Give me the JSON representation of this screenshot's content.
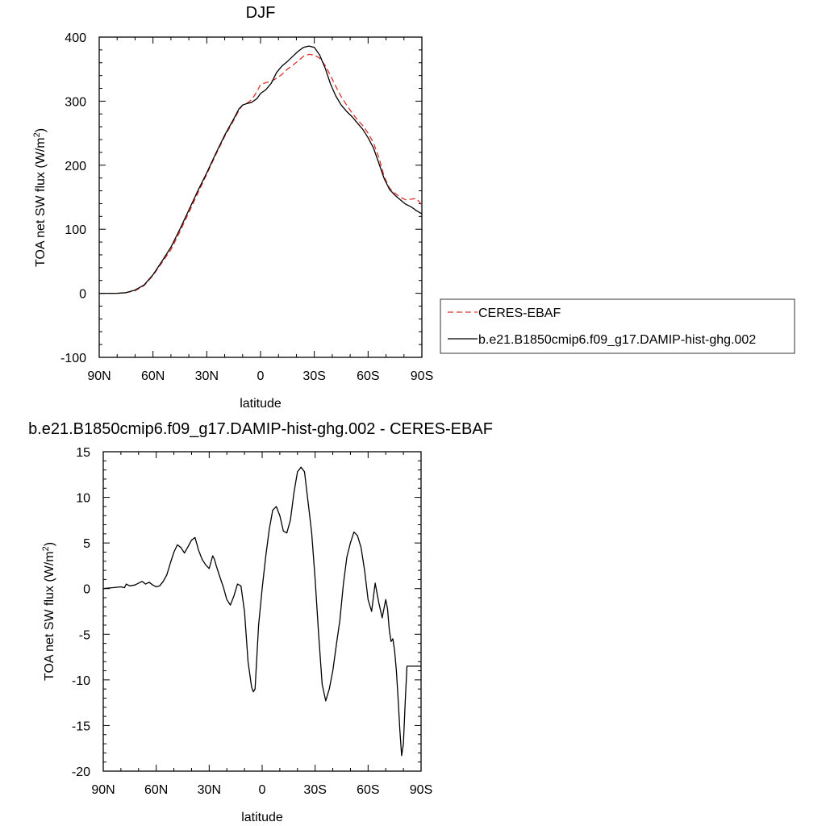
{
  "chart_data": [
    {
      "type": "line",
      "title": "DJF",
      "xlabel": "latitude",
      "ylabel": "TOA net SW flux (W/m",
      "ylabel_sup": "2",
      "ylabel_end": ")",
      "xlim": [
        90,
        -90
      ],
      "ylim": [
        -100,
        400
      ],
      "xticks": [
        {
          "value": 90,
          "label": "90N"
        },
        {
          "value": 60,
          "label": "60N"
        },
        {
          "value": 30,
          "label": "30N"
        },
        {
          "value": 0,
          "label": "0"
        },
        {
          "value": -30,
          "label": "30S"
        },
        {
          "value": -60,
          "label": "60S"
        },
        {
          "value": -90,
          "label": "90S"
        }
      ],
      "yticks": [
        {
          "value": -100,
          "label": "-100"
        },
        {
          "value": 0,
          "label": "0"
        },
        {
          "value": 100,
          "label": "100"
        },
        {
          "value": 200,
          "label": "200"
        },
        {
          "value": 300,
          "label": "300"
        },
        {
          "value": 400,
          "label": "400"
        }
      ],
      "legend_placement": "outside-right-bottom",
      "series": [
        {
          "name": "CERES-EBAF",
          "color": "#e0302a",
          "dash": "dashed",
          "x": [
            90,
            85,
            80,
            75,
            70,
            65,
            60,
            55,
            50,
            45,
            40,
            35,
            30,
            25,
            20,
            15,
            12,
            10,
            8,
            5,
            2,
            0,
            -3,
            -6,
            -9,
            -12,
            -15,
            -18,
            -21,
            -24,
            -27,
            -30,
            -33,
            -36,
            -39,
            -42,
            -45,
            -48,
            -51,
            -54,
            -57,
            -60,
            -63,
            -66,
            -69,
            -72,
            -75,
            -78,
            -81,
            -84,
            -87,
            -90
          ],
          "y": [
            0,
            0,
            0,
            1,
            4,
            12,
            28,
            48,
            68,
            96,
            126,
            156,
            186,
            216,
            245,
            270,
            286,
            294,
            296,
            302,
            315,
            326,
            329,
            331,
            336,
            342,
            350,
            356,
            363,
            370,
            373,
            372,
            367,
            356,
            340,
            323,
            307,
            294,
            282,
            271,
            262,
            250,
            235,
            212,
            182,
            164,
            156,
            150,
            146,
            147,
            148,
            138
          ]
        },
        {
          "name": "b.e21.B1850cmip6.f09_g17.DAMIP-hist-ghg.002",
          "color": "#000000",
          "dash": "solid",
          "x": [
            90,
            85,
            80,
            75,
            70,
            65,
            60,
            55,
            50,
            45,
            40,
            35,
            30,
            25,
            20,
            15,
            12,
            10,
            8,
            5,
            2,
            0,
            -3,
            -6,
            -9,
            -12,
            -15,
            -18,
            -21,
            -24,
            -27,
            -30,
            -33,
            -36,
            -39,
            -42,
            -45,
            -48,
            -51,
            -54,
            -57,
            -60,
            -63,
            -66,
            -69,
            -72,
            -75,
            -78,
            -81,
            -84,
            -87,
            -90
          ],
          "y": [
            0,
            0,
            0,
            1,
            5,
            13,
            29,
            50,
            72,
            100,
            130,
            160,
            188,
            218,
            247,
            272,
            288,
            294,
            296,
            298,
            304,
            312,
            318,
            328,
            345,
            355,
            362,
            370,
            378,
            384,
            386,
            384,
            372,
            352,
            327,
            308,
            294,
            284,
            276,
            266,
            256,
            243,
            227,
            203,
            179,
            162,
            153,
            146,
            139,
            135,
            129,
            124
          ]
        }
      ]
    },
    {
      "type": "line",
      "title": "b.e21.B1850cmip6.f09_g17.DAMIP-hist-ghg.002 - CERES-EBAF",
      "xlabel": "latitude",
      "ylabel": "TOA net SW flux (W/m",
      "ylabel_sup": "2",
      "ylabel_end": ")",
      "xlim": [
        90,
        -90
      ],
      "ylim": [
        -20,
        15
      ],
      "xticks": [
        {
          "value": 90,
          "label": "90N"
        },
        {
          "value": 60,
          "label": "60N"
        },
        {
          "value": 30,
          "label": "30N"
        },
        {
          "value": 0,
          "label": "0"
        },
        {
          "value": -30,
          "label": "30S"
        },
        {
          "value": -60,
          "label": "60S"
        },
        {
          "value": -90,
          "label": "90S"
        }
      ],
      "yticks": [
        {
          "value": -20,
          "label": "-20"
        },
        {
          "value": -15,
          "label": "-15"
        },
        {
          "value": -10,
          "label": "-10"
        },
        {
          "value": -5,
          "label": "-5"
        },
        {
          "value": 0,
          "label": "0"
        },
        {
          "value": 5,
          "label": "5"
        },
        {
          "value": 10,
          "label": "10"
        },
        {
          "value": 15,
          "label": "15"
        }
      ],
      "series": [
        {
          "color": "#000000",
          "dash": "solid",
          "x": [
            90,
            85,
            80,
            78,
            77,
            75,
            72,
            70,
            68,
            66,
            64,
            62,
            60,
            58,
            56,
            54,
            52,
            50,
            48,
            46,
            44,
            42,
            40,
            38,
            36,
            34,
            32,
            30,
            28,
            27,
            26,
            24,
            22,
            20,
            18,
            16,
            14,
            12,
            10,
            8,
            6,
            5,
            4,
            2,
            0,
            -2,
            -4,
            -6,
            -8,
            -10,
            -12,
            -14,
            -16,
            -18,
            -20,
            -22,
            -24,
            -26,
            -28,
            -30,
            -32,
            -34,
            -36,
            -38,
            -40,
            -42,
            -44,
            -46,
            -48,
            -50,
            -52,
            -54,
            -56,
            -58,
            -60,
            -62,
            -64,
            -66,
            -68,
            -70,
            -71,
            -72,
            -73,
            -74,
            -75,
            -76,
            -77,
            -78,
            -79,
            -80,
            -81,
            -82,
            -83,
            -84,
            -85,
            -86,
            -87,
            -88,
            -89,
            -90
          ],
          "y": [
            0,
            0.1,
            0.2,
            0.1,
            0.5,
            0.3,
            0.4,
            0.6,
            0.8,
            0.5,
            0.7,
            0.4,
            0.2,
            0.3,
            0.8,
            1.5,
            2.8,
            4,
            4.8,
            4.5,
            3.9,
            4.6,
            5.3,
            5.6,
            4.2,
            3.2,
            2.6,
            2.2,
            3.6,
            3.2,
            2.5,
            1.3,
            0.2,
            -1.2,
            -1.8,
            -0.8,
            0.5,
            0.3,
            -2.5,
            -8,
            -10.8,
            -11.3,
            -11,
            -4,
            0,
            3.5,
            6.5,
            8.6,
            9,
            8,
            6.3,
            6.1,
            7.5,
            10.5,
            12.8,
            13.3,
            12.8,
            9.5,
            6.2,
            1,
            -5,
            -10.5,
            -12.3,
            -11,
            -9,
            -6.2,
            -3.5,
            0.5,
            3.5,
            5,
            6.2,
            5.8,
            4.5,
            2,
            -1.2,
            -2.5,
            0.6,
            -1.5,
            -3.2,
            -1.2,
            -2.2,
            -4.5,
            -5.8,
            -5.5,
            -6.8,
            -9,
            -12,
            -15.5,
            -18.3,
            -17,
            -12.5,
            -8.5,
            -8.5,
            -8.5,
            -8.5,
            -8.5,
            -8.5,
            -8.5,
            -8.5,
            -8.5
          ]
        }
      ]
    }
  ]
}
